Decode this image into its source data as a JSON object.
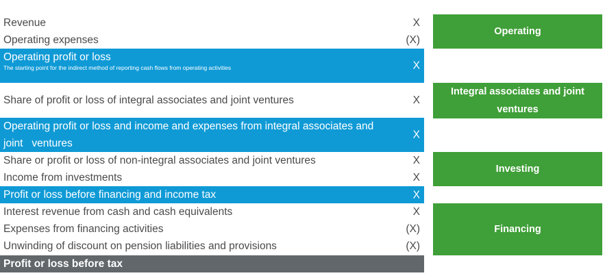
{
  "statement": {
    "rows": [
      {
        "label": "Revenue",
        "value": "X"
      },
      {
        "label": "Operating expenses",
        "value": "(X)"
      },
      {
        "label": "Operating profit or loss",
        "note": "The starting point for the indirect method of reporting cash flows from operating activities",
        "value": "X"
      },
      {
        "label": "Share of profit or loss of integral associates and joint ventures",
        "value": "X"
      },
      {
        "label": "Operating profit or loss and income and expenses from integral associates and joint   ventures",
        "value": "X"
      },
      {
        "label": "Share or profit or loss of non-integral associates and joint ventures",
        "value": "X"
      },
      {
        "label": "Income from investments",
        "value": "X"
      },
      {
        "label": "Profit or loss before financing and income tax",
        "value": "X"
      },
      {
        "label": "Interest revenue from cash and cash equivalents",
        "value": "X"
      },
      {
        "label": "Expenses from financing activities",
        "value": "(X)"
      },
      {
        "label": "Unwinding of discount on pension liabilities and provisions",
        "value": "(X)"
      },
      {
        "label": "Profit or loss before tax"
      }
    ]
  },
  "categories": {
    "operating": "Operating",
    "integral": "Integral associates and joint ventures",
    "investing": "Investing",
    "financing": "Financing"
  },
  "colors": {
    "highlight_blue": "#0f9ad6",
    "category_green": "#3f9f38",
    "total_gray": "#62676b",
    "text_gray": "#4a4a4a"
  }
}
